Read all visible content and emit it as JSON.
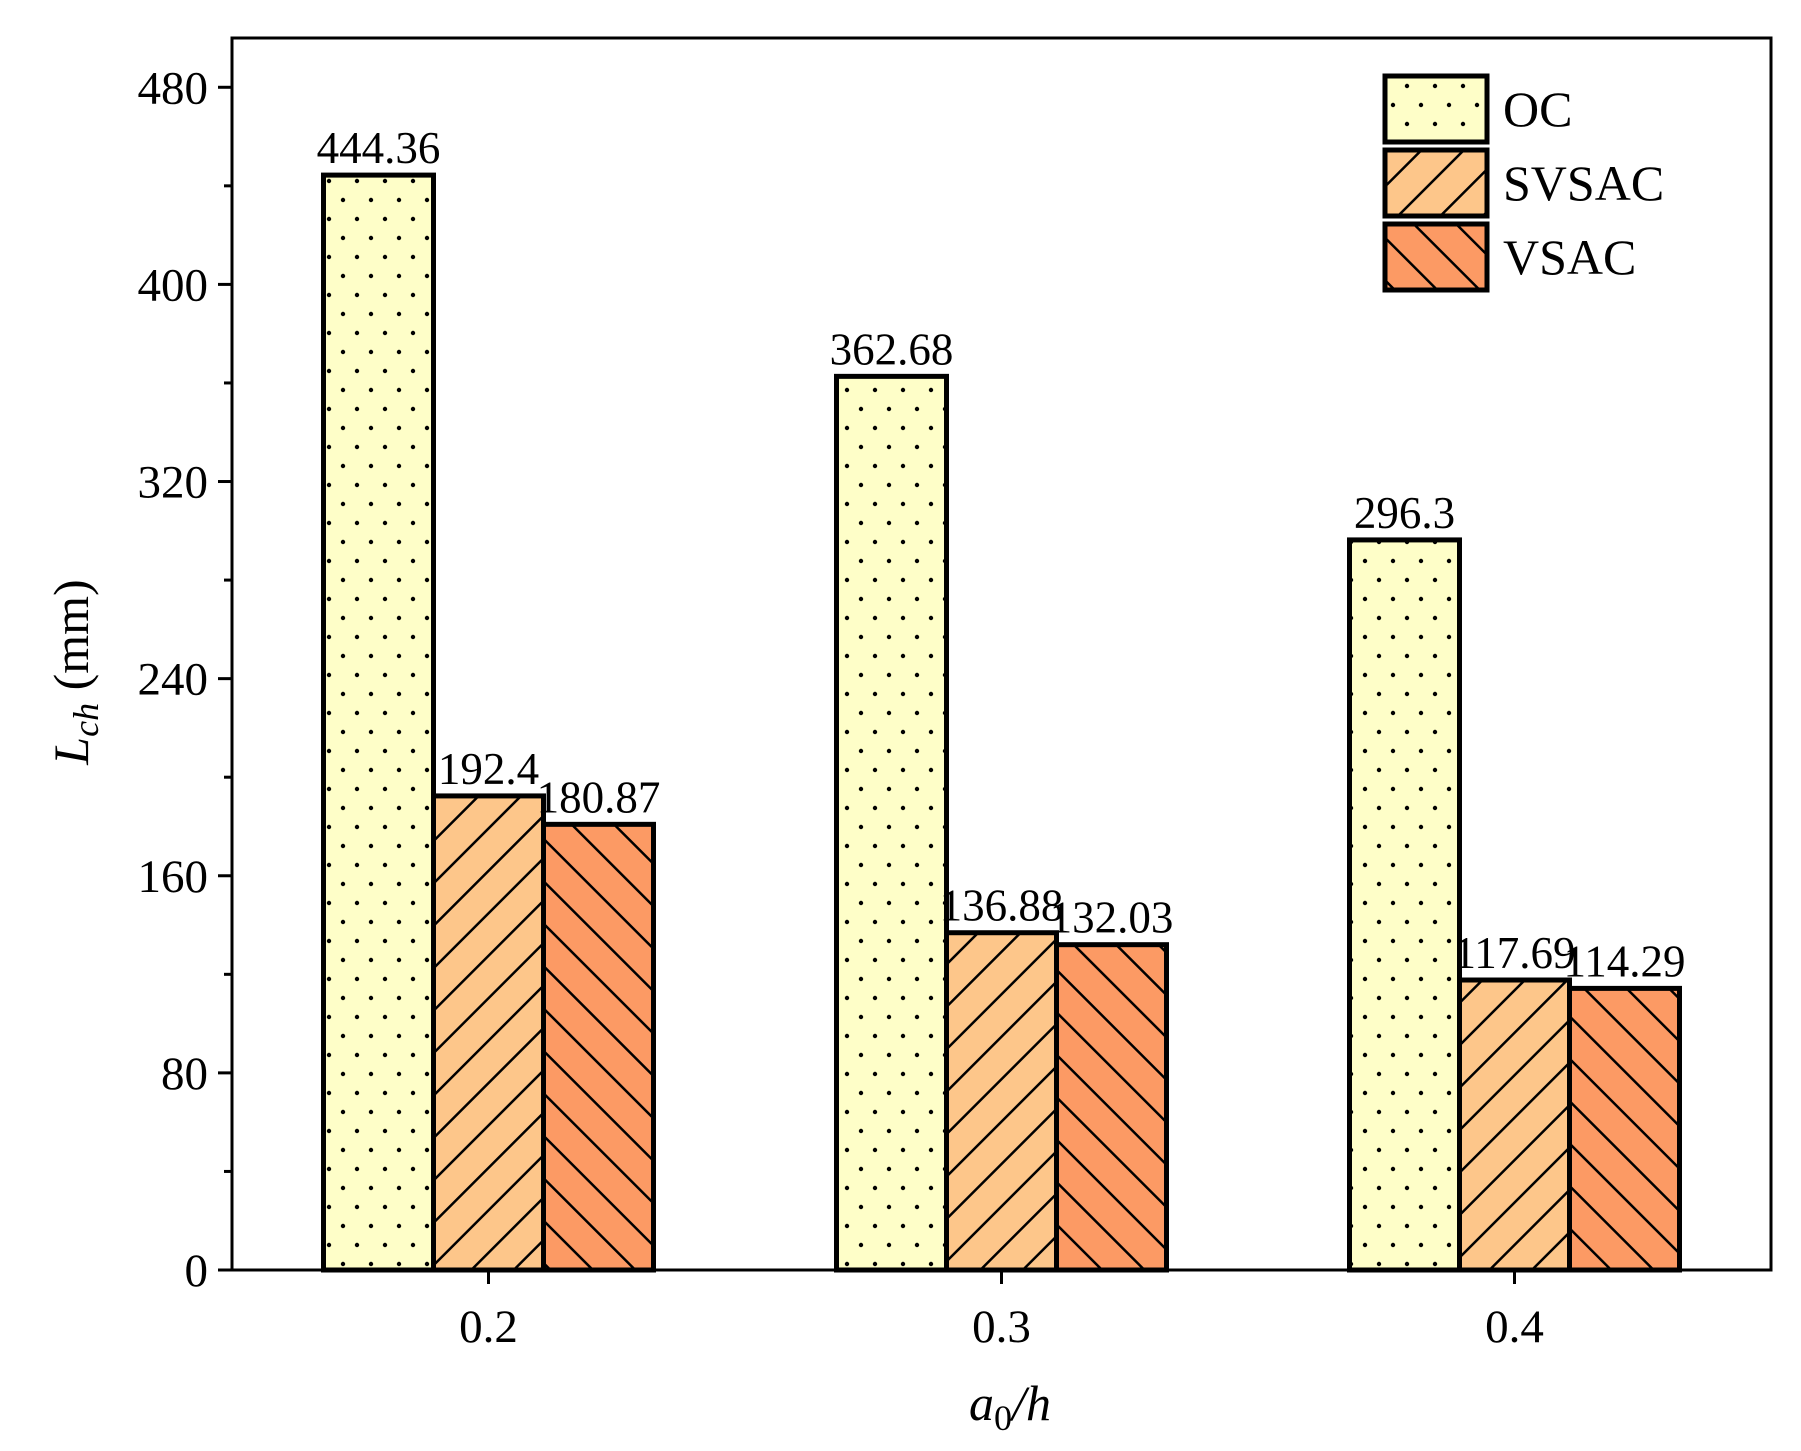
{
  "chart_data": {
    "type": "bar",
    "categories": [
      "0.2",
      "0.3",
      "0.4"
    ],
    "series": [
      {
        "name": "OC",
        "values": [
          444.36,
          362.68,
          296.3
        ],
        "labels": [
          "444.36",
          "362.68",
          "296.3"
        ],
        "color": "#FEFEC8",
        "pattern": "dots"
      },
      {
        "name": "SVSAC",
        "values": [
          192.4,
          136.88,
          117.69
        ],
        "labels": [
          "192.4",
          "136.88",
          "117.69"
        ],
        "color": "#FDC68A",
        "pattern": "forward-hatch"
      },
      {
        "name": "VSAC",
        "values": [
          180.87,
          132.03,
          114.29
        ],
        "labels": [
          "180.87",
          "132.03",
          "114.29"
        ],
        "color": "#FC9A64",
        "pattern": "backward-hatch"
      }
    ],
    "ylim": [
      0,
      500
    ],
    "yticks": [
      0,
      80,
      160,
      240,
      320,
      400,
      480
    ],
    "ytick_labels": [
      "0",
      "80",
      "160",
      "240",
      "320",
      "400",
      "480"
    ],
    "y_minor_step": 40,
    "xlabel": {
      "main": "a",
      "sub": "0",
      "rest": "/h"
    },
    "ylabel": {
      "main": "L",
      "sub": "ch",
      "rest": " (mm)"
    },
    "legend_position": "top-right",
    "grid": false
  }
}
